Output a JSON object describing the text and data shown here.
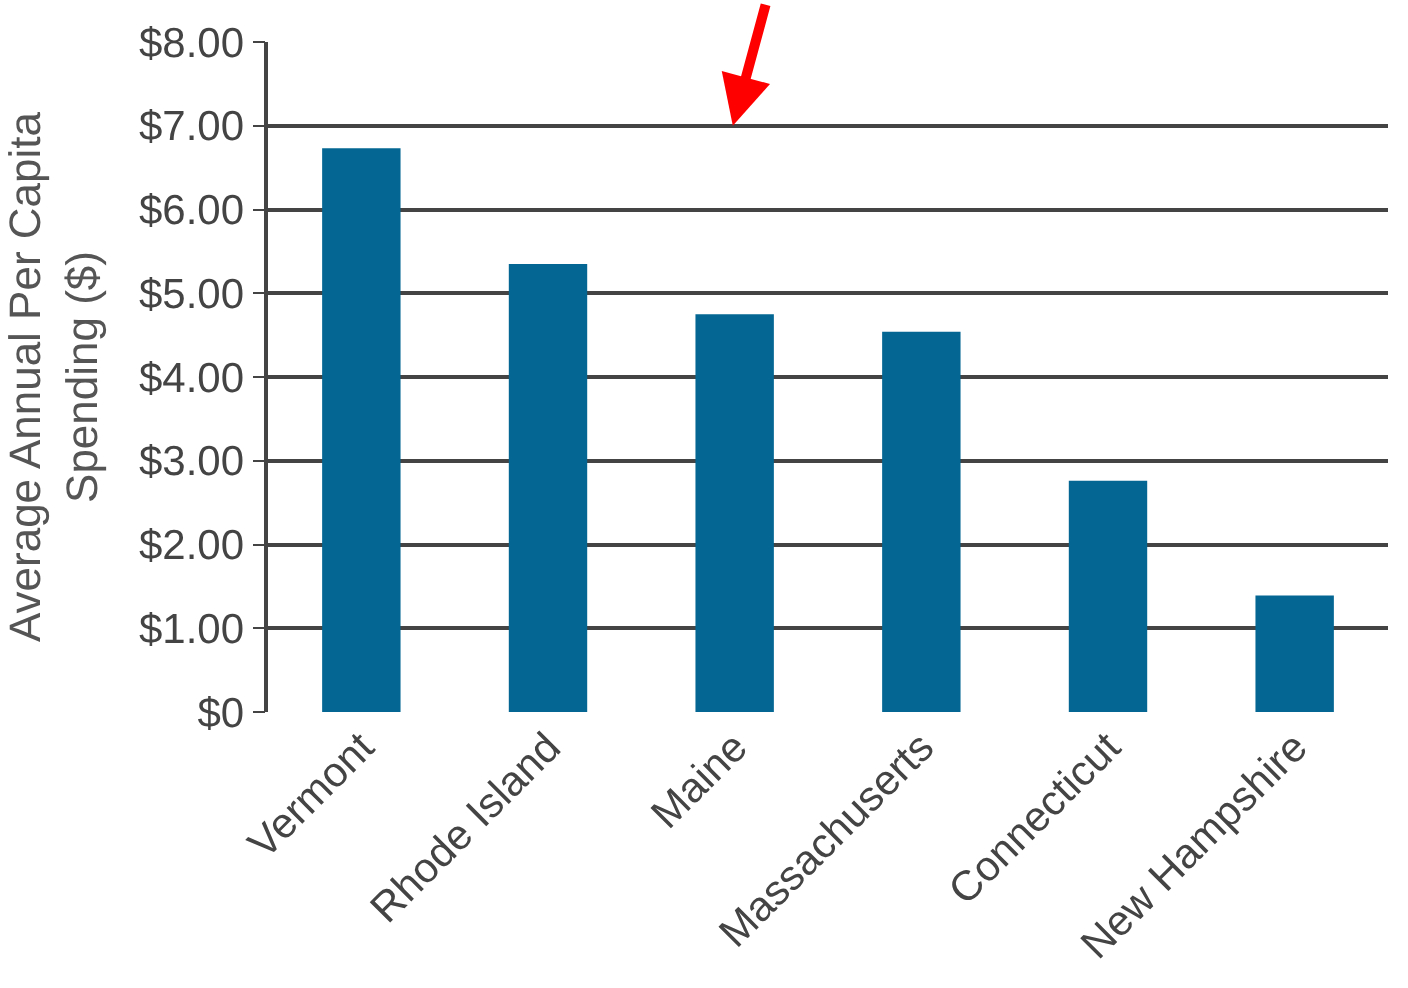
{
  "chart_data": {
    "type": "bar",
    "ylabel": "Average Annual Per Capita Spending ($)",
    "categories": [
      "Vermont",
      "Rhode Island",
      "Maine",
      "Massachuserts",
      "Connecticut",
      "New Hampshire"
    ],
    "values": [
      6.73,
      5.35,
      4.75,
      4.54,
      2.76,
      1.39
    ],
    "color": "#036693",
    "ylim": [
      0,
      8
    ],
    "yticks": [
      {
        "value": 0,
        "label": "$0"
      },
      {
        "value": 1,
        "label": "$1.00"
      },
      {
        "value": 2,
        "label": "$2.00"
      },
      {
        "value": 3,
        "label": "$3.00"
      },
      {
        "value": 4,
        "label": "$4.00"
      },
      {
        "value": 5,
        "label": "$5.00"
      },
      {
        "value": 6,
        "label": "$6.00"
      },
      {
        "value": 7,
        "label": "$7.00"
      },
      {
        "value": 8,
        "label": "$8.00"
      }
    ],
    "grid": "y"
  }
}
